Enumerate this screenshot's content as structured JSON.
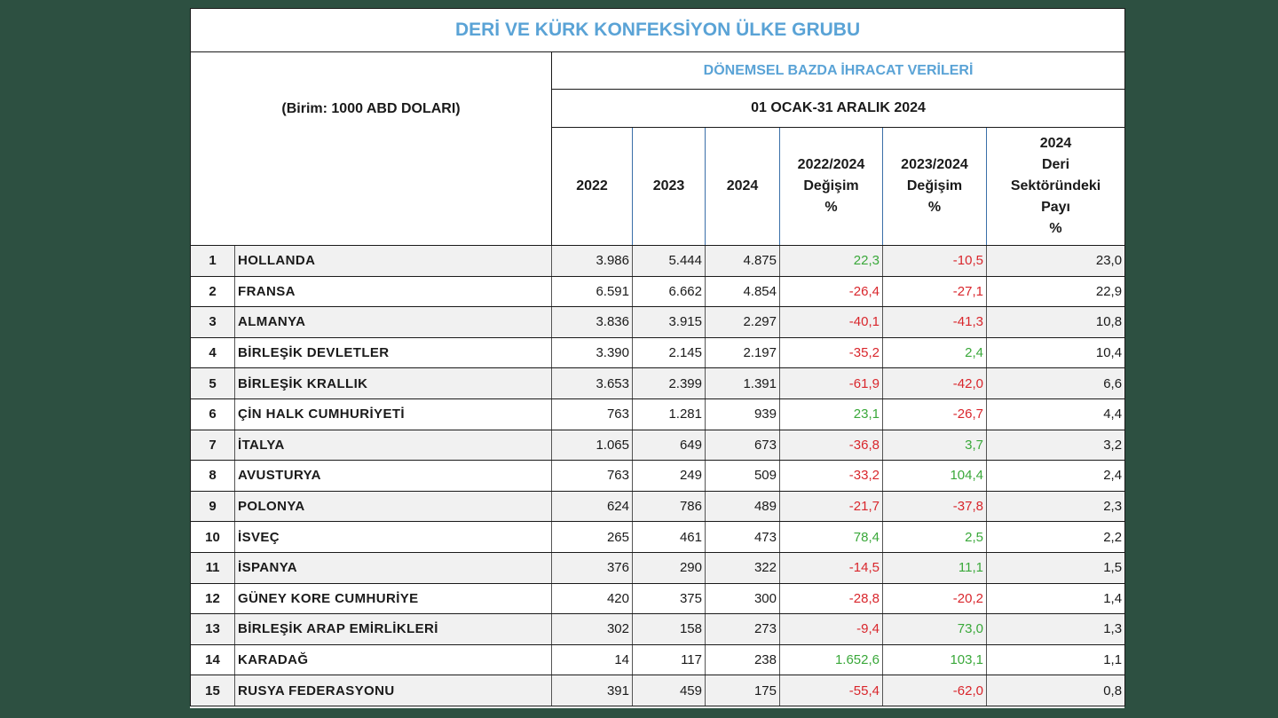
{
  "title": "DERİ VE KÜRK KONFEKSİYON ÜLKE GRUBU",
  "unit_label": "(Birim: 1000 ABD DOLARI)",
  "section_label": "DÖNEMSEL BAZDA İHRACAT VERİLERİ",
  "period_label": "01 OCAK-31 ARALIK 2024",
  "columns": {
    "y2022": "2022",
    "y2023": "2023",
    "y2024": "2024",
    "chg2022": "2022/2024\nDeğişim\n%",
    "chg2023": "2023/2024\nDeğişim\n%",
    "share": "2024\nDeri\nSektöründeki\nPayı\n%"
  },
  "colors": {
    "positive": "#3aa83a",
    "negative": "#d9262c",
    "title": "#5aa3d6"
  },
  "rows": [
    {
      "rank": "1",
      "country": "HOLLANDA",
      "y2022": "3.986",
      "y2023": "5.444",
      "y2024": "4.875",
      "chg2022": "22,3",
      "chg2023": "-10,5",
      "share": "23,0"
    },
    {
      "rank": "2",
      "country": "FRANSA",
      "y2022": "6.591",
      "y2023": "6.662",
      "y2024": "4.854",
      "chg2022": "-26,4",
      "chg2023": "-27,1",
      "share": "22,9"
    },
    {
      "rank": "3",
      "country": "ALMANYA",
      "y2022": "3.836",
      "y2023": "3.915",
      "y2024": "2.297",
      "chg2022": "-40,1",
      "chg2023": "-41,3",
      "share": "10,8"
    },
    {
      "rank": "4",
      "country": "BİRLEŞİK DEVLETLER",
      "y2022": "3.390",
      "y2023": "2.145",
      "y2024": "2.197",
      "chg2022": "-35,2",
      "chg2023": "2,4",
      "share": "10,4"
    },
    {
      "rank": "5",
      "country": "BİRLEŞİK KRALLIK",
      "y2022": "3.653",
      "y2023": "2.399",
      "y2024": "1.391",
      "chg2022": "-61,9",
      "chg2023": "-42,0",
      "share": "6,6"
    },
    {
      "rank": "6",
      "country": "ÇİN HALK CUMHURİYETİ",
      "y2022": "763",
      "y2023": "1.281",
      "y2024": "939",
      "chg2022": "23,1",
      "chg2023": "-26,7",
      "share": "4,4"
    },
    {
      "rank": "7",
      "country": "İTALYA",
      "y2022": "1.065",
      "y2023": "649",
      "y2024": "673",
      "chg2022": "-36,8",
      "chg2023": "3,7",
      "share": "3,2"
    },
    {
      "rank": "8",
      "country": "AVUSTURYA",
      "y2022": "763",
      "y2023": "249",
      "y2024": "509",
      "chg2022": "-33,2",
      "chg2023": "104,4",
      "share": "2,4"
    },
    {
      "rank": "9",
      "country": "POLONYA",
      "y2022": "624",
      "y2023": "786",
      "y2024": "489",
      "chg2022": "-21,7",
      "chg2023": "-37,8",
      "share": "2,3"
    },
    {
      "rank": "10",
      "country": "İSVEÇ",
      "y2022": "265",
      "y2023": "461",
      "y2024": "473",
      "chg2022": "78,4",
      "chg2023": "2,5",
      "share": "2,2"
    },
    {
      "rank": "11",
      "country": "İSPANYA",
      "y2022": "376",
      "y2023": "290",
      "y2024": "322",
      "chg2022": "-14,5",
      "chg2023": "11,1",
      "share": "1,5"
    },
    {
      "rank": "12",
      "country": "GÜNEY KORE CUMHURİYE",
      "y2022": "420",
      "y2023": "375",
      "y2024": "300",
      "chg2022": "-28,8",
      "chg2023": "-20,2",
      "share": "1,4"
    },
    {
      "rank": "13",
      "country": "BİRLEŞİK ARAP EMİRLİKLERİ",
      "y2022": "302",
      "y2023": "158",
      "y2024": "273",
      "chg2022": "-9,4",
      "chg2023": "73,0",
      "share": "1,3"
    },
    {
      "rank": "14",
      "country": "KARADAĞ",
      "y2022": "14",
      "y2023": "117",
      "y2024": "238",
      "chg2022": "1.652,6",
      "chg2023": "103,1",
      "share": "1,1"
    },
    {
      "rank": "15",
      "country": "RUSYA FEDERASYONU",
      "y2022": "391",
      "y2023": "459",
      "y2024": "175",
      "chg2022": "-55,4",
      "chg2023": "-62,0",
      "share": "0,8"
    }
  ]
}
